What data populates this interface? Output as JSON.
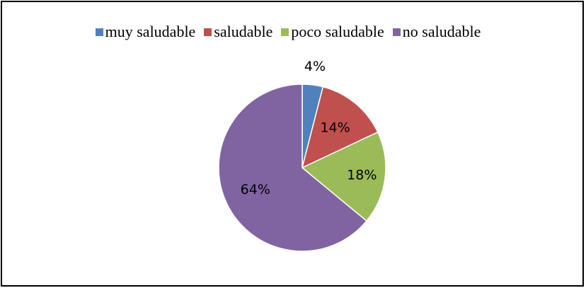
{
  "chart_data": {
    "type": "pie",
    "categories": [
      "muy saludable",
      "saludable",
      "poco saludable",
      "no saludable"
    ],
    "values": [
      4,
      14,
      18,
      64
    ],
    "labels": [
      "4%",
      "14%",
      "18%",
      "64%"
    ],
    "colors": [
      "#4F81BD",
      "#C0504D",
      "#9BBB59",
      "#8064A2"
    ],
    "legend_position": "top"
  }
}
